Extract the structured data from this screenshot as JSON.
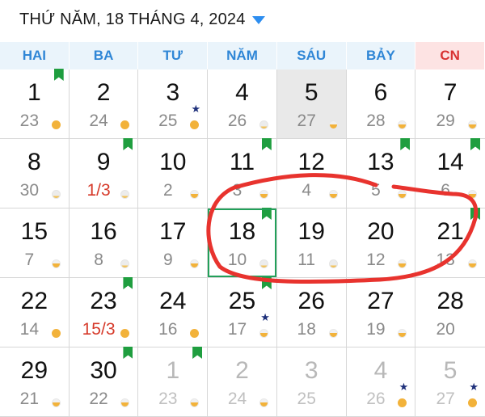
{
  "header": {
    "title": "THỨ NĂM, 18 THÁNG 4, 2024"
  },
  "weekdays": [
    "HAI",
    "BA",
    "TƯ",
    "NĂM",
    "SÁU",
    "BẢY",
    "CN"
  ],
  "weeks": [
    [
      {
        "solar": "1",
        "lunar": "23",
        "moon": "full",
        "flag": true
      },
      {
        "solar": "2",
        "lunar": "24",
        "moon": "full"
      },
      {
        "solar": "3",
        "lunar": "25",
        "moon": "full",
        "star": true
      },
      {
        "solar": "4",
        "lunar": "26",
        "moon": "new"
      },
      {
        "solar": "5",
        "lunar": "27",
        "moon": "half",
        "today": true
      },
      {
        "solar": "6",
        "lunar": "28",
        "moon": "half"
      },
      {
        "solar": "7",
        "lunar": "29",
        "moon": "half"
      }
    ],
    [
      {
        "solar": "8",
        "lunar": "30",
        "moon": "new"
      },
      {
        "solar": "9",
        "lunar": "1/3",
        "moon": "new",
        "flag": true,
        "red": true
      },
      {
        "solar": "10",
        "lunar": "2",
        "moon": "half"
      },
      {
        "solar": "11",
        "lunar": "3",
        "moon": "half",
        "flag": true
      },
      {
        "solar": "12",
        "lunar": "4",
        "moon": "half"
      },
      {
        "solar": "13",
        "lunar": "5",
        "moon": "half",
        "flag": true
      },
      {
        "solar": "14",
        "lunar": "6",
        "moon": "half",
        "flag": true
      }
    ],
    [
      {
        "solar": "15",
        "lunar": "7",
        "moon": "half"
      },
      {
        "solar": "16",
        "lunar": "8",
        "moon": "new"
      },
      {
        "solar": "17",
        "lunar": "9",
        "moon": "half"
      },
      {
        "solar": "18",
        "lunar": "10",
        "moon": "new",
        "flag": true,
        "selected": true
      },
      {
        "solar": "19",
        "lunar": "11",
        "moon": "new"
      },
      {
        "solar": "20",
        "lunar": "12",
        "moon": "half"
      },
      {
        "solar": "21",
        "lunar": "13",
        "moon": "half",
        "flag": true
      }
    ],
    [
      {
        "solar": "22",
        "lunar": "14",
        "moon": "full"
      },
      {
        "solar": "23",
        "lunar": "15/3",
        "moon": "full",
        "flag": true,
        "red": true
      },
      {
        "solar": "24",
        "lunar": "16",
        "moon": "full"
      },
      {
        "solar": "25",
        "lunar": "17",
        "moon": "half",
        "flag": true,
        "star": true
      },
      {
        "solar": "26",
        "lunar": "18",
        "moon": "half"
      },
      {
        "solar": "27",
        "lunar": "19",
        "moon": "half"
      },
      {
        "solar": "28",
        "lunar": "20",
        "moon": "none"
      }
    ],
    [
      {
        "solar": "29",
        "lunar": "21",
        "moon": "half"
      },
      {
        "solar": "30",
        "lunar": "22",
        "moon": "half",
        "flag": true
      },
      {
        "solar": "1",
        "lunar": "23",
        "moon": "half",
        "flag": true,
        "other": true
      },
      {
        "solar": "2",
        "lunar": "24",
        "moon": "half",
        "other": true
      },
      {
        "solar": "3",
        "lunar": "25",
        "moon": "none",
        "other": true
      },
      {
        "solar": "4",
        "lunar": "26",
        "moon": "full",
        "star": true,
        "other": true
      },
      {
        "solar": "5",
        "lunar": "27",
        "moon": "full",
        "star": true,
        "other": true
      }
    ]
  ],
  "colors": {
    "accent": "#2d8ef0",
    "weekday_bg": "#eaf4fb",
    "sunday_bg": "#fde3e3",
    "flag": "#1f9e3f",
    "lunar_red": "#d63a2a",
    "annotation": "#e8332e"
  },
  "icons": {
    "dropdown": "caret-down-icon",
    "flag": "flag-icon",
    "star": "star-icon",
    "moon": "moon-phase-icon"
  }
}
